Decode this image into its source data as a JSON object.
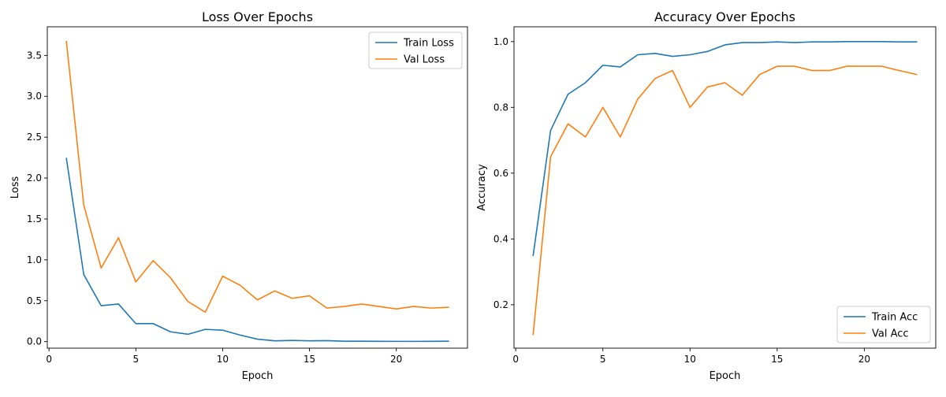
{
  "chart_data": [
    {
      "type": "line",
      "title": "Loss Over Epochs",
      "xlabel": "Epoch",
      "ylabel": "Loss",
      "xlim": [
        -0.1,
        24.1
      ],
      "ylim": [
        -0.08,
        3.85
      ],
      "xticks": [
        0,
        5,
        10,
        15,
        20
      ],
      "yticks": [
        0.0,
        0.5,
        1.0,
        1.5,
        2.0,
        2.5,
        3.0,
        3.5
      ],
      "xtick_labels": [
        "0",
        "5",
        "10",
        "15",
        "20"
      ],
      "ytick_labels": [
        "0.0",
        "0.5",
        "1.0",
        "1.5",
        "2.0",
        "2.5",
        "3.0",
        "3.5"
      ],
      "legend_position": "top-right",
      "grid": false,
      "x": [
        1,
        2,
        3,
        4,
        5,
        6,
        7,
        8,
        9,
        10,
        11,
        12,
        13,
        14,
        15,
        16,
        17,
        18,
        19,
        20,
        21,
        22,
        23
      ],
      "series": [
        {
          "name": "Train Loss",
          "color": "#1f77b4",
          "values": [
            2.24,
            0.82,
            0.44,
            0.46,
            0.22,
            0.22,
            0.12,
            0.09,
            0.15,
            0.14,
            0.08,
            0.03,
            0.01,
            0.015,
            0.01,
            0.012,
            0.005,
            0.005,
            0.004,
            0.003,
            0.003,
            0.004,
            0.005
          ]
        },
        {
          "name": "Val Loss",
          "color": "#ff7f0e",
          "values": [
            3.67,
            1.67,
            0.9,
            1.27,
            0.73,
            0.99,
            0.78,
            0.49,
            0.36,
            0.8,
            0.69,
            0.51,
            0.62,
            0.53,
            0.56,
            0.41,
            0.43,
            0.46,
            0.43,
            0.4,
            0.43,
            0.41,
            0.42
          ]
        }
      ]
    },
    {
      "type": "line",
      "title": "Accuracy Over Epochs",
      "xlabel": "Epoch",
      "ylabel": "Accuracy",
      "xlim": [
        -0.1,
        24.1
      ],
      "ylim": [
        0.068,
        1.045
      ],
      "xticks": [
        0,
        5,
        10,
        15,
        20
      ],
      "yticks": [
        0.2,
        0.4,
        0.6,
        0.8,
        1.0
      ],
      "xtick_labels": [
        "0",
        "5",
        "10",
        "15",
        "20"
      ],
      "ytick_labels": [
        "0.2",
        "0.4",
        "0.6",
        "0.8",
        "1.0"
      ],
      "legend_position": "bottom-right",
      "grid": false,
      "x": [
        1,
        2,
        3,
        4,
        5,
        6,
        7,
        8,
        9,
        10,
        11,
        12,
        13,
        14,
        15,
        16,
        17,
        18,
        19,
        20,
        21,
        22,
        23
      ],
      "series": [
        {
          "name": "Train Acc",
          "color": "#1f77b4",
          "values": [
            0.35,
            0.73,
            0.84,
            0.875,
            0.928,
            0.923,
            0.96,
            0.964,
            0.955,
            0.96,
            0.97,
            0.99,
            0.997,
            0.997,
            0.999,
            0.997,
            0.999,
            0.999,
            1.0,
            1.0,
            1.0,
            0.999,
            0.999
          ]
        },
        {
          "name": "Val Acc",
          "color": "#ff7f0e",
          "values": [
            0.11,
            0.65,
            0.75,
            0.71,
            0.8,
            0.71,
            0.825,
            0.888,
            0.912,
            0.8,
            0.862,
            0.875,
            0.837,
            0.9,
            0.925,
            0.925,
            0.912,
            0.912,
            0.925,
            0.925,
            0.925,
            0.912,
            0.9
          ]
        }
      ]
    }
  ]
}
